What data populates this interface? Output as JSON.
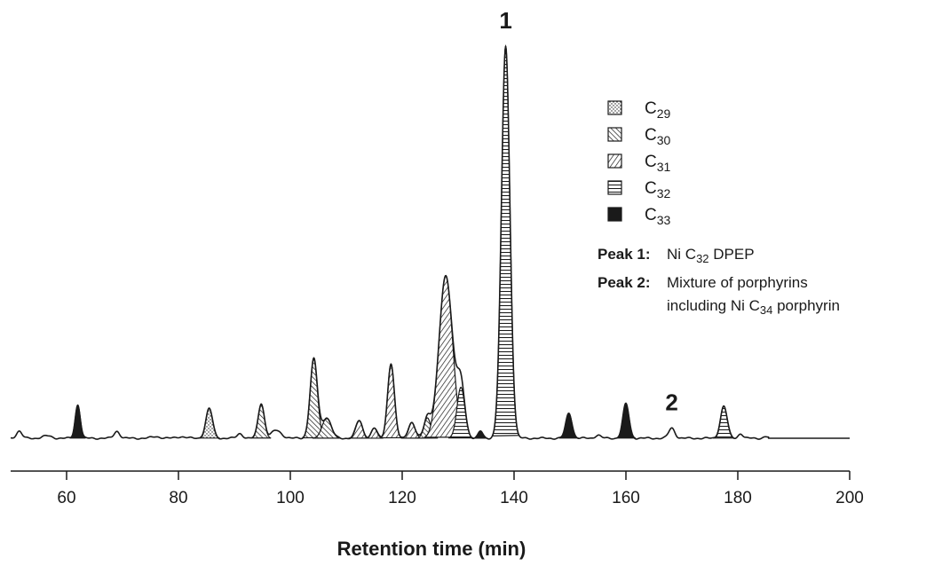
{
  "chart_data": {
    "type": "area",
    "xlabel": "Retention time (min)",
    "ylabel": "",
    "xlim": [
      50,
      200
    ],
    "xticks": [
      60,
      80,
      100,
      120,
      140,
      160,
      180,
      200
    ],
    "grid": false,
    "legend_placement": "upper-right",
    "series": [
      {
        "name": "C29",
        "base": "C",
        "sub": "29",
        "pattern": "dots"
      },
      {
        "name": "C30",
        "base": "C",
        "sub": "30",
        "pattern": "diag-right"
      },
      {
        "name": "C31",
        "base": "C",
        "sub": "31",
        "pattern": "diag-left"
      },
      {
        "name": "C32",
        "base": "C",
        "sub": "32",
        "pattern": "horizontal"
      },
      {
        "name": "C33",
        "base": "C",
        "sub": "33",
        "pattern": "solid"
      }
    ],
    "peaks": [
      {
        "x": 51.5,
        "height": 0.018,
        "width": 0.5,
        "series": null
      },
      {
        "x": 56.5,
        "height": 0.006,
        "width": 0.8,
        "series": null
      },
      {
        "x": 62.0,
        "height": 0.085,
        "width": 0.45,
        "series": "C33"
      },
      {
        "x": 69.0,
        "height": 0.018,
        "width": 0.5,
        "series": null
      },
      {
        "x": 76.0,
        "height": 0.004,
        "width": 0.8,
        "series": null
      },
      {
        "x": 80.5,
        "height": 0.004,
        "width": 0.8,
        "series": null
      },
      {
        "x": 85.5,
        "height": 0.076,
        "width": 0.6,
        "series": "C29"
      },
      {
        "x": 91.0,
        "height": 0.012,
        "width": 0.5,
        "series": null
      },
      {
        "x": 94.8,
        "height": 0.088,
        "width": 0.55,
        "series": "C30"
      },
      {
        "x": 97.5,
        "height": 0.02,
        "width": 0.9,
        "series": null
      },
      {
        "x": 104.2,
        "height": 0.202,
        "width": 0.65,
        "series": "C30"
      },
      {
        "x": 106.5,
        "height": 0.052,
        "width": 0.8,
        "series": "C30"
      },
      {
        "x": 112.3,
        "height": 0.045,
        "width": 0.6,
        "series": "C31"
      },
      {
        "x": 115.0,
        "height": 0.026,
        "width": 0.5,
        "series": "C31"
      },
      {
        "x": 118.0,
        "height": 0.19,
        "width": 0.6,
        "series": "C31"
      },
      {
        "x": 121.7,
        "height": 0.04,
        "width": 0.6,
        "series": "C31"
      },
      {
        "x": 124.5,
        "height": 0.052,
        "width": 0.6,
        "series": "C30"
      },
      {
        "x": 127.8,
        "height": 0.415,
        "width": 1.2,
        "series": "C31"
      },
      {
        "x": 130.5,
        "height": 0.13,
        "width": 0.7,
        "series": "C32"
      },
      {
        "x": 134.0,
        "height": 0.018,
        "width": 0.4,
        "series": "C33"
      },
      {
        "x": 138.5,
        "height": 1.0,
        "width": 0.75,
        "series": "C32"
      },
      {
        "x": 149.8,
        "height": 0.064,
        "width": 0.55,
        "series": "C33"
      },
      {
        "x": 155.0,
        "height": 0.008,
        "width": 0.5,
        "series": null
      },
      {
        "x": 160.0,
        "height": 0.088,
        "width": 0.55,
        "series": "C33"
      },
      {
        "x": 168.2,
        "height": 0.026,
        "width": 0.55,
        "series": null
      },
      {
        "x": 177.5,
        "height": 0.082,
        "width": 0.6,
        "series": "C32"
      },
      {
        "x": 180.5,
        "height": 0.012,
        "width": 0.4,
        "series": null
      },
      {
        "x": 185.0,
        "height": 0.004,
        "width": 0.4,
        "series": null
      }
    ],
    "peak_labels": [
      {
        "text": "1",
        "x": 138.5
      },
      {
        "text": "2",
        "x": 168.2
      }
    ],
    "annotations": [
      {
        "label": "Peak 1:",
        "lines": [
          {
            "text": "Ni C",
            "sub": "32",
            "after": " DPEP",
            "tail": ""
          }
        ]
      },
      {
        "label": "Peak 2:",
        "lines": [
          {
            "text": "Mixture of porphyrins",
            "sub": "",
            "after": "",
            "tail": ""
          },
          {
            "text": "including Ni C",
            "sub": "34",
            "after": " porphyrin",
            "tail": ""
          }
        ]
      }
    ]
  }
}
